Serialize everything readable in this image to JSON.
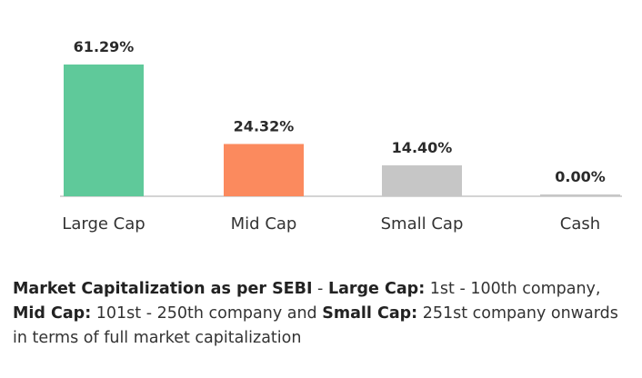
{
  "chart_data": {
    "type": "bar",
    "categories": [
      "Large Cap",
      "Mid Cap",
      "Small Cap",
      "Cash"
    ],
    "values": [
      61.29,
      24.32,
      14.4,
      0.0
    ],
    "value_labels": [
      "61.29%",
      "24.32%",
      "14.40%",
      "0.00%"
    ],
    "colors": [
      "#5fc99a",
      "#fb8a5e",
      "#c6c6c6",
      "#c6c6c6"
    ],
    "ylim": [
      0,
      61.29
    ],
    "grid": false,
    "legend": "none"
  },
  "note": {
    "t1": "Market Capitalization as per SEBI",
    "t2": " - ",
    "t3": "Large Cap:",
    "t4": " 1st - 100th company, ",
    "t5": "Mid Cap:",
    "t6": " 101st - 250th company and ",
    "t7": "Small Cap:",
    "t8": " 251st company onwards in terms of full market capitalization"
  }
}
